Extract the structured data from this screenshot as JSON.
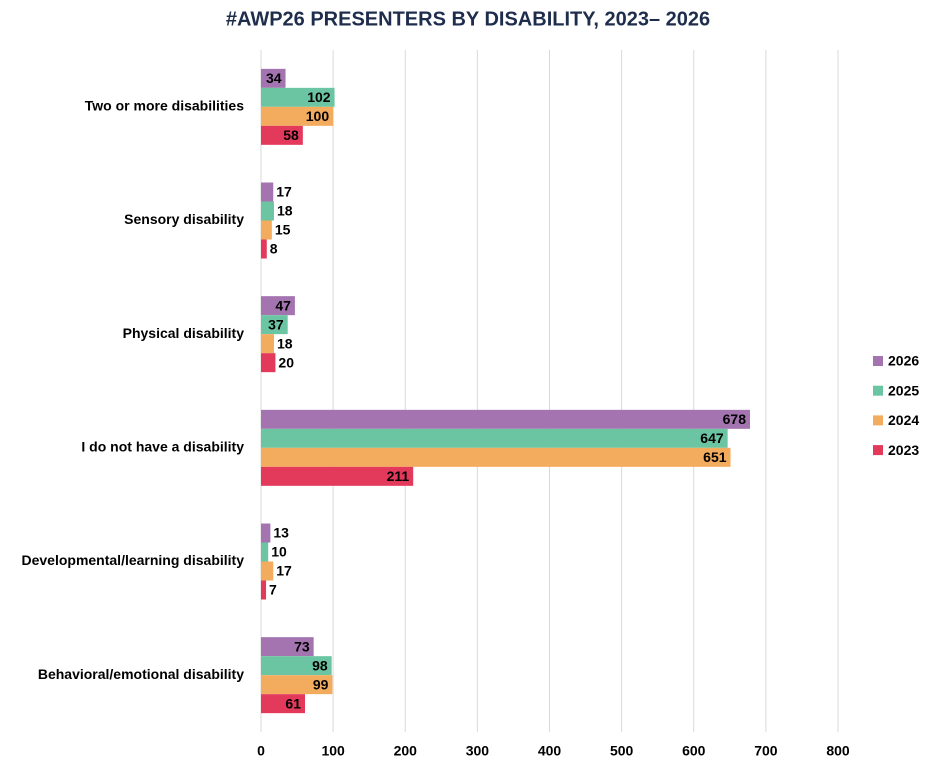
{
  "chart_data": {
    "type": "bar",
    "orientation": "horizontal",
    "title": "#AWP26 PRESENTERS BY DISABILITY, 2023– 2026",
    "categories": [
      "Two or more disabilities",
      "Sensory disability",
      "Physical disability",
      "I do not have a disability",
      "Developmental/learning disability",
      "Behavioral/emotional disability"
    ],
    "series": [
      {
        "name": "2026",
        "color": "#a374b0",
        "values": [
          34,
          17,
          47,
          678,
          13,
          73
        ]
      },
      {
        "name": "2025",
        "color": "#6cc5a2",
        "values": [
          102,
          18,
          37,
          647,
          10,
          98
        ]
      },
      {
        "name": "2024",
        "color": "#f3ab5e",
        "values": [
          100,
          15,
          18,
          651,
          17,
          99
        ]
      },
      {
        "name": "2023",
        "color": "#e33a5c",
        "values": [
          58,
          8,
          20,
          211,
          7,
          61
        ]
      }
    ],
    "xlim": [
      0,
      800
    ],
    "xticks": [
      0,
      100,
      200,
      300,
      400,
      500,
      600,
      700,
      800
    ],
    "grid": true,
    "legend": "right"
  }
}
